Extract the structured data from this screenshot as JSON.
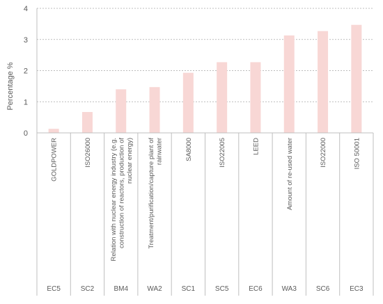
{
  "chart_data": {
    "type": "bar",
    "title": "",
    "xlabel": "",
    "ylabel": "Percentage %",
    "ylim": [
      0,
      4
    ],
    "yticks": [
      "0",
      "1",
      "2",
      "3",
      "4"
    ],
    "grid": "horizontal dashed",
    "bar_color": "#f8d7d5",
    "categories": [
      {
        "label": [
          "GOLDPOWER"
        ],
        "code": "EC5",
        "value": 0.13
      },
      {
        "label": [
          "ISO26000"
        ],
        "code": "SC2",
        "value": 0.67
      },
      {
        "label": [
          "Relation with nuclear energy industry (e.g.",
          "construction of reactors, production of",
          "nuclear energy)"
        ],
        "code": "BM4",
        "value": 1.4
      },
      {
        "label": [
          "Treatment/purification/capture plant of",
          "rainwater"
        ],
        "code": "WA2",
        "value": 1.47
      },
      {
        "label": [
          "SA8000"
        ],
        "code": "SC1",
        "value": 1.93
      },
      {
        "label": [
          "ISO22005"
        ],
        "code": "SC5",
        "value": 2.27
      },
      {
        "label": [
          "LEED"
        ],
        "code": "EC6",
        "value": 2.27
      },
      {
        "label": [
          "Amount of re-used water"
        ],
        "code": "WA3",
        "value": 3.13
      },
      {
        "label": [
          "ISO22000"
        ],
        "code": "SC6",
        "value": 3.27
      },
      {
        "label": [
          "ISO 50001"
        ],
        "code": "EC3",
        "value": 3.47
      }
    ]
  }
}
